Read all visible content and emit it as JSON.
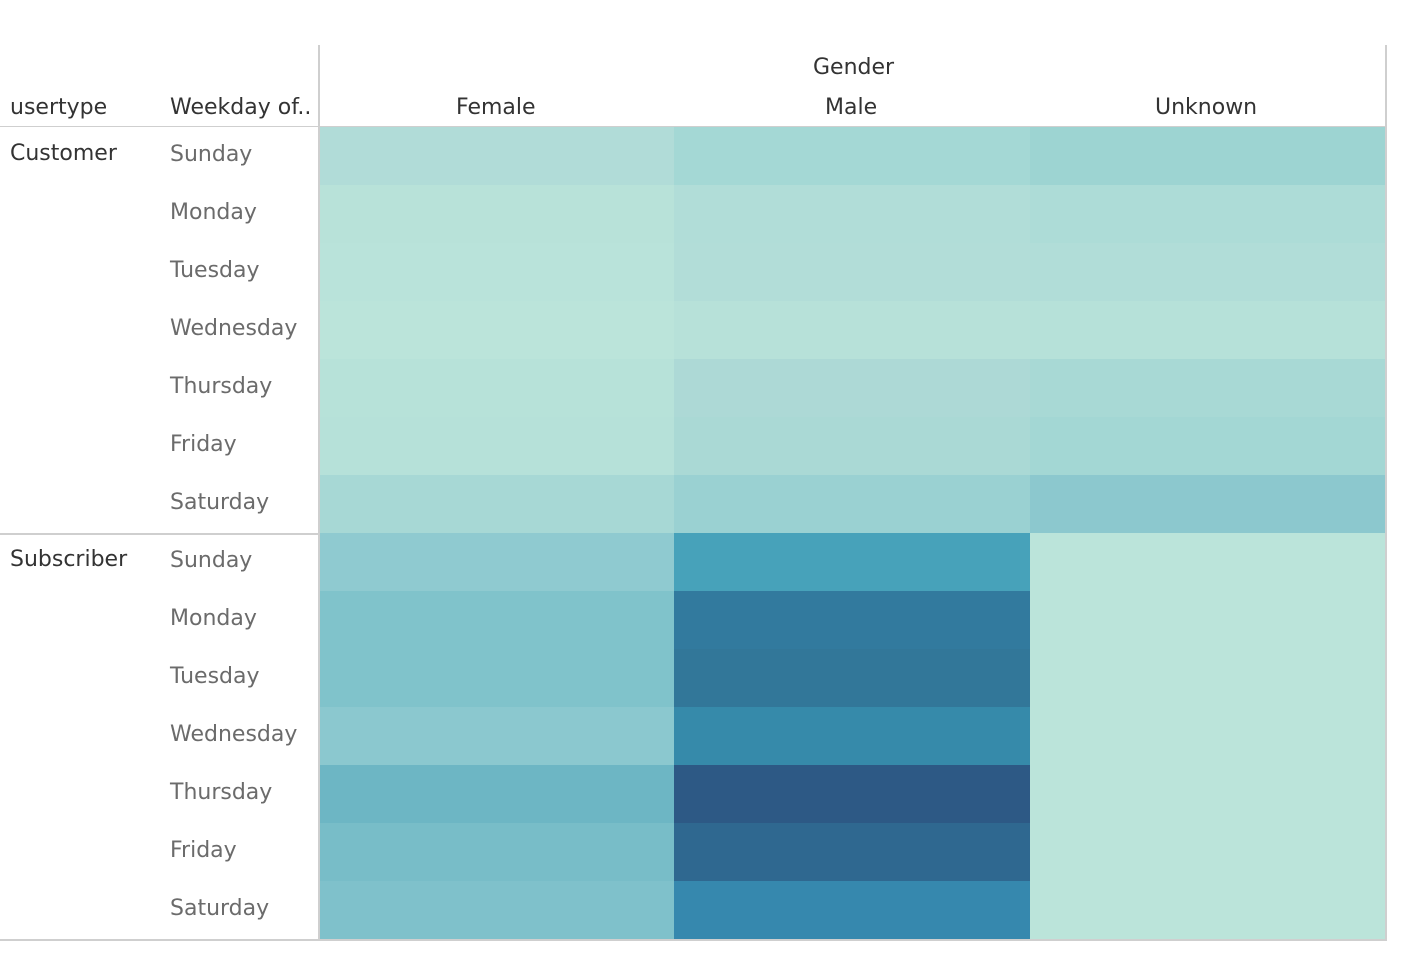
{
  "chart_data": {
    "type": "heatmap",
    "header": {
      "row_field_1": "usertype",
      "row_field_2": "Weekday of..",
      "column_field": "Gender"
    },
    "columns": [
      "Female",
      "Male",
      "Unknown"
    ],
    "groups": [
      {
        "name": "Customer",
        "rows": [
          "Sunday",
          "Monday",
          "Tuesday",
          "Wednesday",
          "Thursday",
          "Friday",
          "Saturday"
        ],
        "colors": [
          [
            "#b1dcd8",
            "#a4d8d5",
            "#9dd4d2"
          ],
          [
            "#b8e2d9",
            "#b1ddd8",
            "#addcd7"
          ],
          [
            "#b9e3da",
            "#b2ddd8",
            "#b1ddd8"
          ],
          [
            "#bbe4da",
            "#b7e1d9",
            "#b6e1d9"
          ],
          [
            "#b7e2d9",
            "#add9d6",
            "#a8d9d5"
          ],
          [
            "#b6e1d9",
            "#aad9d5",
            "#a3d7d4"
          ],
          [
            "#a7d8d5",
            "#9ad1d2",
            "#8cc8ce"
          ]
        ]
      },
      {
        "name": "Subscriber",
        "rows": [
          "Sunday",
          "Monday",
          "Tuesday",
          "Wednesday",
          "Thursday",
          "Friday",
          "Saturday"
        ],
        "colors": [
          [
            "#8fcad0",
            "#47a2ba",
            "#bbe4da"
          ],
          [
            "#80c3cb",
            "#327a9e",
            "#bbe4da"
          ],
          [
            "#80c3cb",
            "#327799",
            "#bbe4da"
          ],
          [
            "#8bc8cf",
            "#368aaa",
            "#bbe4da"
          ],
          [
            "#6db6c4",
            "#2d5985",
            "#bbe4da"
          ],
          [
            "#78bdc8",
            "#2f6890",
            "#bbe4da"
          ],
          [
            "#7fc1cb",
            "#3688ae",
            "#bbe4da"
          ]
        ]
      }
    ]
  }
}
